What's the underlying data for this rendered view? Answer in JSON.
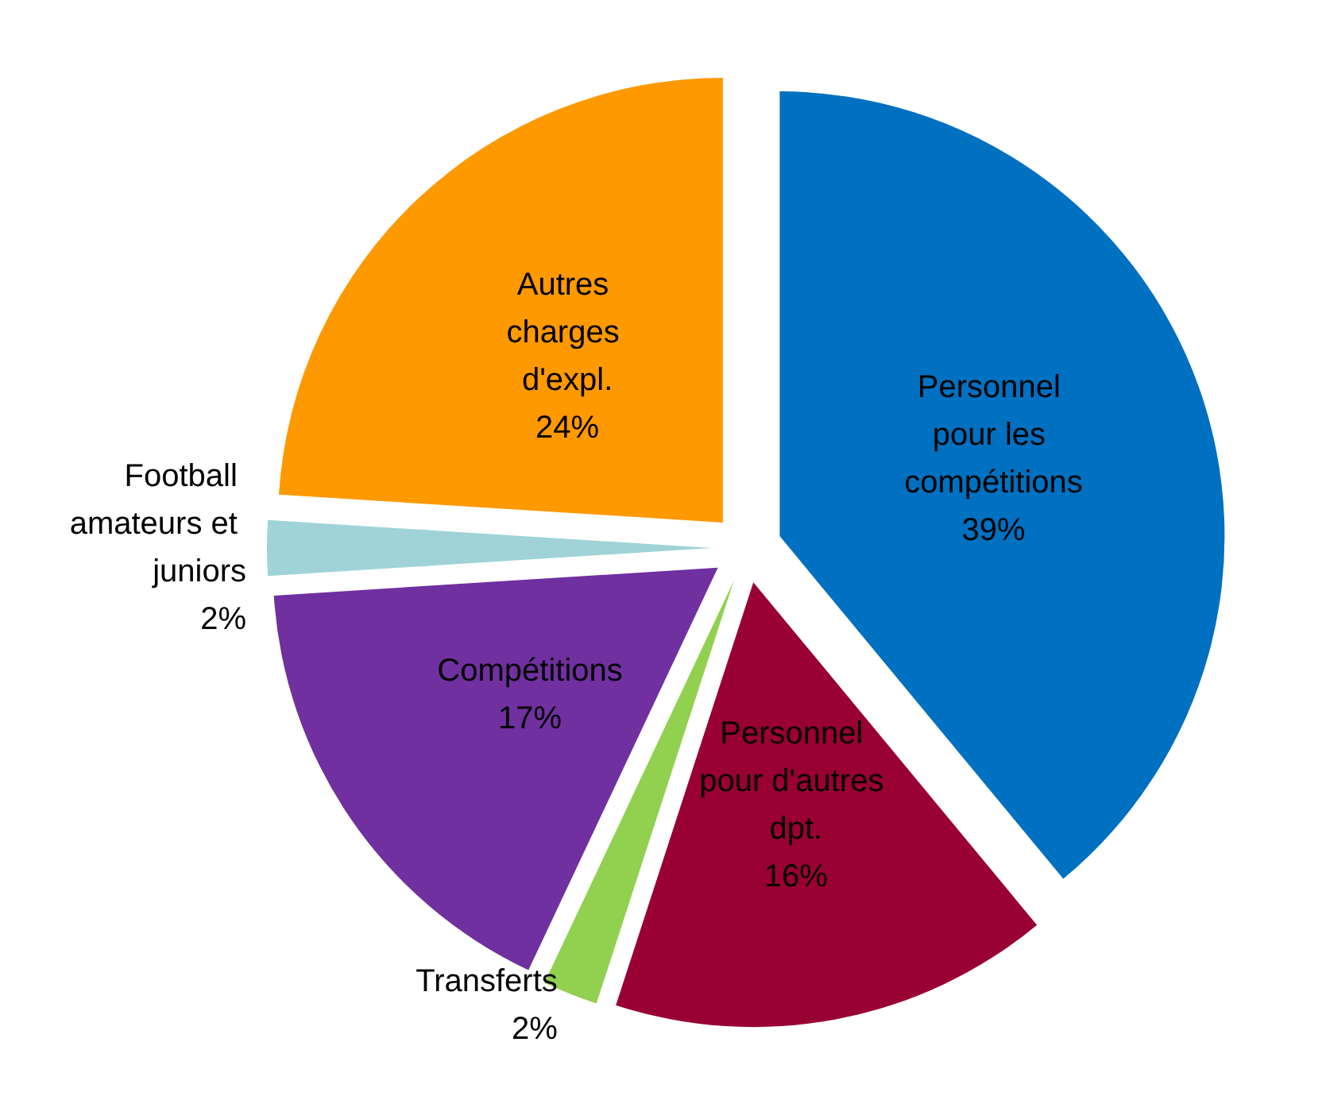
{
  "chart_data": {
    "type": "pie",
    "categories": [
      "Personnel pour les compétitions",
      "Personnel pour d'autres dpt.",
      "Transferts",
      "Compétitions",
      "Football amateurs et juniors",
      "Autres charges d'expl."
    ],
    "values": [
      39,
      16,
      2,
      17,
      2,
      24
    ],
    "value_labels": [
      "39%",
      "16%",
      "2%",
      "17%",
      "2%",
      "24%"
    ],
    "colors": [
      "#0070c0",
      "#990033",
      "#92d050",
      "#7030a0",
      "#9fd3d8",
      "#ff9900"
    ],
    "legend": false
  }
}
